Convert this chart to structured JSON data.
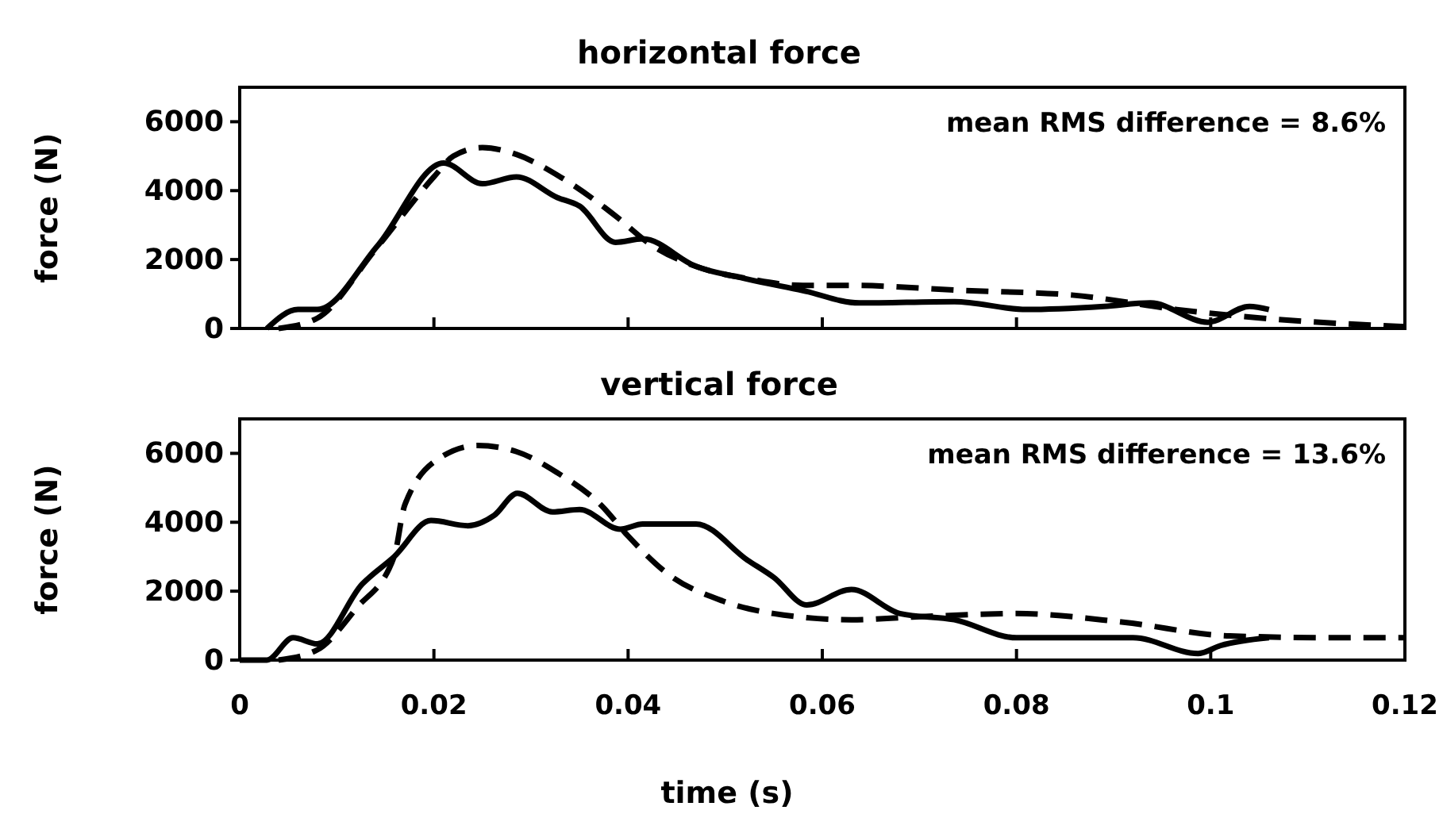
{
  "chart_data": [
    {
      "type": "line",
      "title": "horizontal force",
      "ylabel": "force (N)",
      "xlim": [
        0,
        0.12
      ],
      "xticks": [
        0,
        0.02,
        0.04,
        0.06,
        0.08,
        0.1,
        0.12
      ],
      "ylim": [
        0,
        7000
      ],
      "yticks": [
        0,
        2000,
        4000,
        6000
      ],
      "tick_labels": "y",
      "annotations": [
        "mean RMS difference = 8.6%"
      ],
      "series": [
        {
          "color": "#000000",
          "line_style": "solid",
          "x": [
            0.0028,
            0.006,
            0.008,
            0.0142,
            0.021,
            0.025,
            0.0285,
            0.0327,
            0.035,
            0.0387,
            0.0415,
            0.047,
            0.0523,
            0.058,
            0.0638,
            0.0736,
            0.081,
            0.089,
            0.0938,
            0.0997,
            0.104,
            0.106
          ],
          "values": [
            0,
            550,
            550,
            2400,
            4800,
            4200,
            4400,
            3800,
            3550,
            2500,
            2600,
            1800,
            1430,
            1100,
            740,
            780,
            550,
            640,
            740,
            180,
            640,
            550
          ]
        },
        {
          "color": "#000000",
          "line_style": "dashed",
          "x": [
            0.004,
            0.008,
            0.014,
            0.02,
            0.022,
            0.025,
            0.0285,
            0.033,
            0.039,
            0.042,
            0.047,
            0.0523,
            0.058,
            0.063,
            0.0747,
            0.0857,
            0.0965,
            0.106,
            0.117,
            0.12
          ],
          "values": [
            0,
            300,
            2300,
            4400,
            5000,
            5250,
            5050,
            4400,
            3200,
            2500,
            1800,
            1450,
            1250,
            1250,
            1100,
            970,
            550,
            280,
            90,
            50
          ]
        }
      ]
    },
    {
      "type": "line",
      "title": "vertical force",
      "xlabel": "time (s)",
      "ylabel": "force (N)",
      "xlim": [
        0,
        0.12
      ],
      "xticks": [
        0,
        0.02,
        0.04,
        0.06,
        0.08,
        0.1,
        0.12
      ],
      "ylim": [
        0,
        7000
      ],
      "yticks": [
        0,
        2000,
        4000,
        6000
      ],
      "annotations": [
        "mean RMS difference = 13.6%"
      ],
      "series": [
        {
          "color": "#000000",
          "line_style": "solid",
          "x": [
            0,
            0.0028,
            0.0055,
            0.008,
            0.0126,
            0.0159,
            0.0197,
            0.0235,
            0.0262,
            0.0286,
            0.0322,
            0.035,
            0.0392,
            0.0415,
            0.047,
            0.0523,
            0.055,
            0.0584,
            0.063,
            0.068,
            0.0736,
            0.08,
            0.0857,
            0.092,
            0.0987,
            0.101,
            0.106
          ],
          "values": [
            0,
            0,
            650,
            470,
            2200,
            3000,
            4050,
            3900,
            4200,
            4840,
            4300,
            4370,
            3800,
            3950,
            3950,
            2900,
            2400,
            1600,
            2050,
            1350,
            1170,
            650,
            650,
            650,
            190,
            420,
            650
          ]
        },
        {
          "color": "#000000",
          "line_style": "dashed",
          "x": [
            0.004,
            0.008,
            0.012,
            0.0159,
            0.017,
            0.0208,
            0.0245,
            0.0285,
            0.0327,
            0.0372,
            0.04,
            0.0441,
            0.0497,
            0.055,
            0.063,
            0.0693,
            0.08,
            0.091,
            0.102,
            0.113,
            0.12
          ],
          "values": [
            0,
            300,
            1500,
            3000,
            4500,
            5900,
            6230,
            6050,
            5440,
            4500,
            3600,
            2500,
            1720,
            1350,
            1170,
            1250,
            1350,
            1100,
            700,
            650,
            650
          ]
        }
      ]
    }
  ]
}
